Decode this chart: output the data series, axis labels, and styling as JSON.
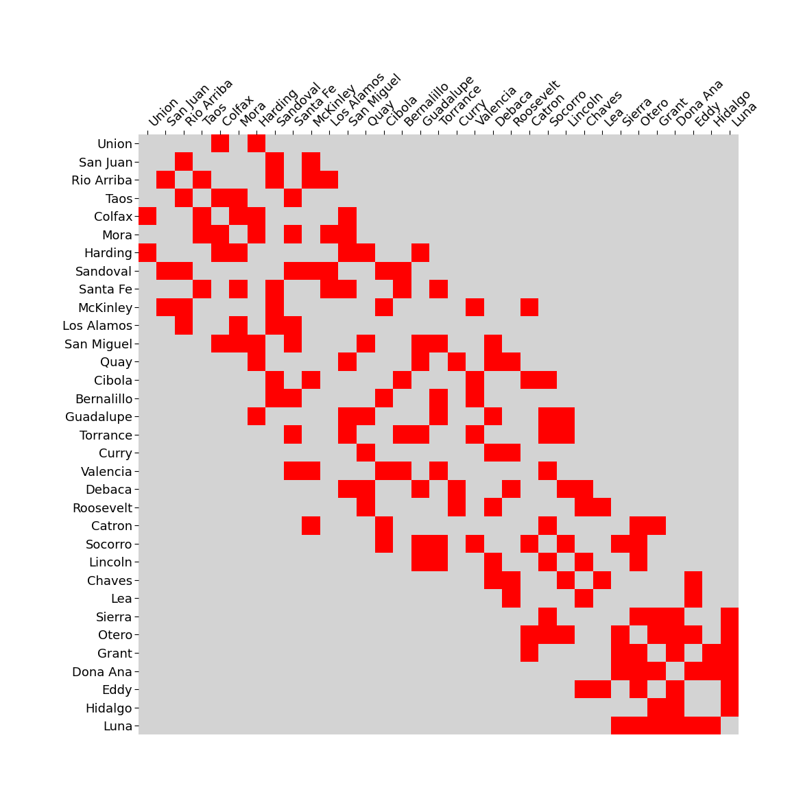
{
  "counties": [
    "Union",
    "San Juan",
    "Rio Arriba",
    "Taos",
    "Colfax",
    "Mora",
    "Harding",
    "Sandoval",
    "Santa Fe",
    "McKinley",
    "Los Alamos",
    "San Miguel",
    "Quay",
    "Cibola",
    "Bernalillo",
    "Guadalupe",
    "Torrance",
    "Curry",
    "Valencia",
    "Debaca",
    "Roosevelt",
    "Catron",
    "Socorro",
    "Lincoln",
    "Chaves",
    "Lea",
    "Sierra",
    "Otero",
    "Grant",
    "Dona Ana",
    "Eddy",
    "Hidalgo",
    "Luna"
  ],
  "adjacency": [
    [
      0,
      0,
      0,
      0,
      1,
      0,
      1,
      0,
      0,
      0,
      0,
      0,
      0,
      0,
      0,
      0,
      0,
      0,
      0,
      0,
      0,
      0,
      0,
      0,
      0,
      0,
      0,
      0,
      0,
      0,
      0,
      0,
      0
    ],
    [
      0,
      0,
      1,
      0,
      0,
      0,
      0,
      1,
      0,
      1,
      0,
      0,
      0,
      0,
      0,
      0,
      0,
      0,
      0,
      0,
      0,
      0,
      0,
      0,
      0,
      0,
      0,
      0,
      0,
      0,
      0,
      0,
      0
    ],
    [
      0,
      1,
      0,
      1,
      0,
      0,
      0,
      1,
      0,
      1,
      1,
      0,
      0,
      0,
      0,
      0,
      0,
      0,
      0,
      0,
      0,
      0,
      0,
      0,
      0,
      0,
      0,
      0,
      0,
      0,
      0,
      0,
      0
    ],
    [
      0,
      0,
      1,
      0,
      1,
      1,
      0,
      0,
      1,
      0,
      0,
      0,
      0,
      0,
      0,
      0,
      0,
      0,
      0,
      0,
      0,
      0,
      0,
      0,
      0,
      0,
      0,
      0,
      0,
      0,
      0,
      0,
      0
    ],
    [
      1,
      0,
      0,
      1,
      0,
      1,
      1,
      0,
      0,
      0,
      0,
      1,
      0,
      0,
      0,
      0,
      0,
      0,
      0,
      0,
      0,
      0,
      0,
      0,
      0,
      0,
      0,
      0,
      0,
      0,
      0,
      0,
      0
    ],
    [
      0,
      0,
      0,
      1,
      1,
      0,
      1,
      0,
      1,
      0,
      1,
      1,
      0,
      0,
      0,
      0,
      0,
      0,
      0,
      0,
      0,
      0,
      0,
      0,
      0,
      0,
      0,
      0,
      0,
      0,
      0,
      0,
      0
    ],
    [
      1,
      0,
      0,
      0,
      1,
      1,
      0,
      0,
      0,
      0,
      0,
      1,
      1,
      0,
      0,
      1,
      0,
      0,
      0,
      0,
      0,
      0,
      0,
      0,
      0,
      0,
      0,
      0,
      0,
      0,
      0,
      0,
      0
    ],
    [
      0,
      1,
      1,
      0,
      0,
      0,
      0,
      0,
      1,
      1,
      1,
      0,
      0,
      1,
      1,
      0,
      0,
      0,
      0,
      0,
      0,
      0,
      0,
      0,
      0,
      0,
      0,
      0,
      0,
      0,
      0,
      0,
      0
    ],
    [
      0,
      0,
      0,
      1,
      0,
      1,
      0,
      1,
      0,
      0,
      1,
      1,
      0,
      0,
      1,
      0,
      1,
      0,
      0,
      0,
      0,
      0,
      0,
      0,
      0,
      0,
      0,
      0,
      0,
      0,
      0,
      0,
      0
    ],
    [
      0,
      1,
      1,
      0,
      0,
      0,
      0,
      1,
      0,
      0,
      0,
      0,
      0,
      1,
      0,
      0,
      0,
      0,
      1,
      0,
      0,
      1,
      0,
      0,
      0,
      0,
      0,
      0,
      0,
      0,
      0,
      0,
      0
    ],
    [
      0,
      0,
      1,
      0,
      0,
      1,
      0,
      1,
      1,
      0,
      0,
      0,
      0,
      0,
      0,
      0,
      0,
      0,
      0,
      0,
      0,
      0,
      0,
      0,
      0,
      0,
      0,
      0,
      0,
      0,
      0,
      0,
      0
    ],
    [
      0,
      0,
      0,
      0,
      1,
      1,
      1,
      0,
      1,
      0,
      0,
      0,
      1,
      0,
      0,
      1,
      1,
      0,
      0,
      1,
      0,
      0,
      0,
      0,
      0,
      0,
      0,
      0,
      0,
      0,
      0,
      0,
      0
    ],
    [
      0,
      0,
      0,
      0,
      0,
      0,
      1,
      0,
      0,
      0,
      0,
      1,
      0,
      0,
      0,
      1,
      0,
      1,
      0,
      1,
      1,
      0,
      0,
      0,
      0,
      0,
      0,
      0,
      0,
      0,
      0,
      0,
      0
    ],
    [
      0,
      0,
      0,
      0,
      0,
      0,
      0,
      1,
      0,
      1,
      0,
      0,
      0,
      0,
      1,
      0,
      0,
      0,
      1,
      0,
      0,
      1,
      1,
      0,
      0,
      0,
      0,
      0,
      0,
      0,
      0,
      0,
      0
    ],
    [
      0,
      0,
      0,
      0,
      0,
      0,
      0,
      1,
      1,
      0,
      0,
      0,
      0,
      1,
      0,
      0,
      1,
      0,
      1,
      0,
      0,
      0,
      0,
      0,
      0,
      0,
      0,
      0,
      0,
      0,
      0,
      0,
      0
    ],
    [
      0,
      0,
      0,
      0,
      0,
      0,
      1,
      0,
      0,
      0,
      0,
      1,
      1,
      0,
      0,
      0,
      1,
      0,
      0,
      1,
      0,
      0,
      1,
      1,
      0,
      0,
      0,
      0,
      0,
      0,
      0,
      0,
      0
    ],
    [
      0,
      0,
      0,
      0,
      0,
      0,
      0,
      0,
      1,
      0,
      0,
      1,
      0,
      0,
      1,
      1,
      0,
      0,
      1,
      0,
      0,
      0,
      1,
      1,
      0,
      0,
      0,
      0,
      0,
      0,
      0,
      0,
      0
    ],
    [
      0,
      0,
      0,
      0,
      0,
      0,
      0,
      0,
      0,
      0,
      0,
      0,
      1,
      0,
      0,
      0,
      0,
      0,
      0,
      1,
      1,
      0,
      0,
      0,
      0,
      0,
      0,
      0,
      0,
      0,
      0,
      0,
      0
    ],
    [
      0,
      0,
      0,
      0,
      0,
      0,
      0,
      0,
      1,
      1,
      0,
      0,
      0,
      1,
      1,
      0,
      1,
      0,
      0,
      0,
      0,
      0,
      1,
      0,
      0,
      0,
      0,
      0,
      0,
      0,
      0,
      0,
      0
    ],
    [
      0,
      0,
      0,
      0,
      0,
      0,
      0,
      0,
      0,
      0,
      0,
      1,
      1,
      0,
      0,
      1,
      0,
      1,
      0,
      0,
      1,
      0,
      0,
      1,
      1,
      0,
      0,
      0,
      0,
      0,
      0,
      0,
      0
    ],
    [
      0,
      0,
      0,
      0,
      0,
      0,
      0,
      0,
      0,
      0,
      0,
      0,
      1,
      0,
      0,
      0,
      0,
      1,
      0,
      1,
      0,
      0,
      0,
      0,
      1,
      1,
      0,
      0,
      0,
      0,
      0,
      0,
      0
    ],
    [
      0,
      0,
      0,
      0,
      0,
      0,
      0,
      0,
      0,
      1,
      0,
      0,
      0,
      1,
      0,
      0,
      0,
      0,
      0,
      0,
      0,
      0,
      1,
      0,
      0,
      0,
      0,
      1,
      1,
      0,
      0,
      0,
      0
    ],
    [
      0,
      0,
      0,
      0,
      0,
      0,
      0,
      0,
      0,
      0,
      0,
      0,
      0,
      1,
      0,
      1,
      1,
      0,
      1,
      0,
      0,
      1,
      0,
      1,
      0,
      0,
      1,
      1,
      0,
      0,
      0,
      0,
      0
    ],
    [
      0,
      0,
      0,
      0,
      0,
      0,
      0,
      0,
      0,
      0,
      0,
      0,
      0,
      0,
      0,
      1,
      1,
      0,
      0,
      1,
      0,
      0,
      1,
      0,
      1,
      0,
      0,
      1,
      0,
      0,
      0,
      0,
      0
    ],
    [
      0,
      0,
      0,
      0,
      0,
      0,
      0,
      0,
      0,
      0,
      0,
      0,
      0,
      0,
      0,
      0,
      0,
      0,
      0,
      1,
      1,
      0,
      0,
      1,
      0,
      1,
      0,
      0,
      0,
      0,
      1,
      0,
      0
    ],
    [
      0,
      0,
      0,
      0,
      0,
      0,
      0,
      0,
      0,
      0,
      0,
      0,
      0,
      0,
      0,
      0,
      0,
      0,
      0,
      0,
      1,
      0,
      0,
      0,
      1,
      0,
      0,
      0,
      0,
      0,
      1,
      0,
      0
    ],
    [
      0,
      0,
      0,
      0,
      0,
      0,
      0,
      0,
      0,
      0,
      0,
      0,
      0,
      0,
      0,
      0,
      0,
      0,
      0,
      0,
      0,
      0,
      1,
      0,
      0,
      0,
      0,
      1,
      1,
      1,
      0,
      0,
      1
    ],
    [
      0,
      0,
      0,
      0,
      0,
      0,
      0,
      0,
      0,
      0,
      0,
      0,
      0,
      0,
      0,
      0,
      0,
      0,
      0,
      0,
      0,
      1,
      1,
      1,
      0,
      0,
      1,
      0,
      1,
      1,
      1,
      0,
      1
    ],
    [
      0,
      0,
      0,
      0,
      0,
      0,
      0,
      0,
      0,
      0,
      0,
      0,
      0,
      0,
      0,
      0,
      0,
      0,
      0,
      0,
      0,
      1,
      0,
      0,
      0,
      0,
      1,
      1,
      0,
      1,
      0,
      1,
      1
    ],
    [
      0,
      0,
      0,
      0,
      0,
      0,
      0,
      0,
      0,
      0,
      0,
      0,
      0,
      0,
      0,
      0,
      0,
      0,
      0,
      0,
      0,
      0,
      0,
      0,
      0,
      0,
      1,
      1,
      1,
      0,
      1,
      1,
      1
    ],
    [
      0,
      0,
      0,
      0,
      0,
      0,
      0,
      0,
      0,
      0,
      0,
      0,
      0,
      0,
      0,
      0,
      0,
      0,
      0,
      0,
      0,
      0,
      0,
      0,
      1,
      1,
      0,
      1,
      0,
      1,
      0,
      0,
      1
    ],
    [
      0,
      0,
      0,
      0,
      0,
      0,
      0,
      0,
      0,
      0,
      0,
      0,
      0,
      0,
      0,
      0,
      0,
      0,
      0,
      0,
      0,
      0,
      0,
      0,
      0,
      0,
      0,
      0,
      1,
      1,
      0,
      0,
      1
    ],
    [
      0,
      0,
      0,
      0,
      0,
      0,
      0,
      0,
      0,
      0,
      0,
      0,
      0,
      0,
      0,
      0,
      0,
      0,
      0,
      0,
      0,
      0,
      0,
      0,
      0,
      0,
      1,
      1,
      1,
      1,
      1,
      1,
      0
    ]
  ],
  "background_color": "#d3d3d3",
  "cell_color": "#ff0000",
  "fontsize": 13,
  "figsize": [
    11.52,
    11.52
  ],
  "dpi": 100
}
